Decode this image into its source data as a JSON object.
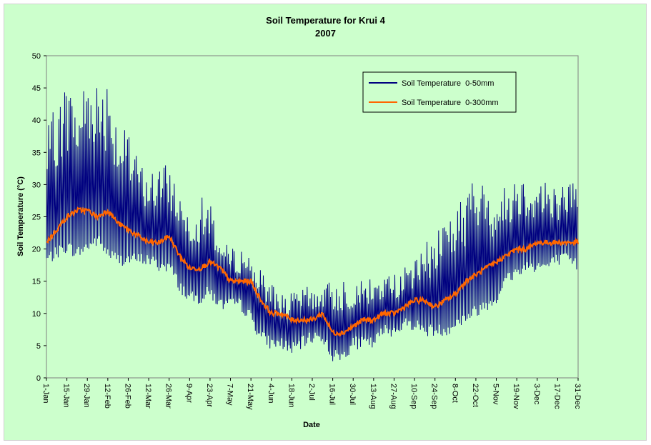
{
  "chart_data": {
    "type": "line",
    "title": "Soil Temperature for Krui 4",
    "subtitle": "2007",
    "xlabel": "Date",
    "ylabel": "Soil Temperature (°C)",
    "ylim": [
      0,
      50
    ],
    "yticks": [
      0,
      5,
      10,
      15,
      20,
      25,
      30,
      35,
      40,
      45,
      50
    ],
    "xlim_days": [
      1,
      365
    ],
    "xticks": [
      {
        "label": "1-Jan",
        "day": 1
      },
      {
        "label": "15-Jan",
        "day": 15
      },
      {
        "label": "29-Jan",
        "day": 29
      },
      {
        "label": "12-Feb",
        "day": 43
      },
      {
        "label": "26-Feb",
        "day": 57
      },
      {
        "label": "12-Mar",
        "day": 71
      },
      {
        "label": "26-Mar",
        "day": 85
      },
      {
        "label": "9-Apr",
        "day": 99
      },
      {
        "label": "23-Apr",
        "day": 113
      },
      {
        "label": "7-May",
        "day": 127
      },
      {
        "label": "21-May",
        "day": 141
      },
      {
        "label": "4-Jun",
        "day": 155
      },
      {
        "label": "18-Jun",
        "day": 169
      },
      {
        "label": "2-Jul",
        "day": 183
      },
      {
        "label": "16-Jul",
        "day": 197
      },
      {
        "label": "30-Jul",
        "day": 211
      },
      {
        "label": "13-Aug",
        "day": 225
      },
      {
        "label": "27-Aug",
        "day": 239
      },
      {
        "label": "10-Sep",
        "day": 253
      },
      {
        "label": "24-Sep",
        "day": 267
      },
      {
        "label": "8-Oct",
        "day": 281
      },
      {
        "label": "22-Oct",
        "day": 295
      },
      {
        "label": "5-Nov",
        "day": 309
      },
      {
        "label": "19-Nov",
        "day": 323
      },
      {
        "label": "3-Dec",
        "day": 337
      },
      {
        "label": "17-Dec",
        "day": 351
      },
      {
        "label": "31-Dec",
        "day": 365
      }
    ],
    "legend_position": "top-right inside plot",
    "grid": false,
    "series": [
      {
        "name": "Soil Temperature  0-50mm",
        "color": "#000080",
        "day": [
          1,
          8,
          15,
          22,
          29,
          36,
          43,
          50,
          57,
          64,
          71,
          78,
          85,
          92,
          99,
          106,
          113,
          120,
          127,
          134,
          141,
          148,
          155,
          162,
          169,
          176,
          183,
          190,
          197,
          204,
          211,
          218,
          225,
          232,
          239,
          246,
          253,
          260,
          267,
          274,
          281,
          288,
          295,
          302,
          309,
          316,
          323,
          330,
          337,
          344,
          351,
          358,
          365
        ],
        "daily_min": [
          18,
          19,
          20,
          19,
          20,
          21,
          19,
          18,
          18,
          18,
          18,
          17,
          17,
          14,
          12,
          12,
          13,
          11,
          11,
          11,
          9,
          6,
          5,
          5,
          4,
          5,
          6,
          6,
          3,
          3,
          5,
          5,
          5,
          7,
          7,
          8,
          8,
          7,
          7,
          7,
          8,
          9,
          10,
          11,
          12,
          15,
          16,
          17,
          17,
          17,
          18,
          18,
          17
        ],
        "daily_max": [
          36,
          40,
          43,
          40,
          45,
          43,
          44,
          37,
          35,
          32,
          30,
          31,
          31,
          27,
          25,
          26,
          26,
          20,
          19,
          19,
          18,
          15,
          14,
          12,
          12,
          13,
          13,
          13,
          14,
          14,
          14,
          14,
          14,
          15,
          15,
          16,
          17,
          19,
          21,
          24,
          24,
          27,
          29,
          27,
          27,
          28,
          30,
          29,
          29,
          29,
          28,
          29,
          30
        ]
      },
      {
        "name": "Soil Temperature  0-300mm",
        "color": "#ff6600",
        "day": [
          1,
          8,
          15,
          22,
          29,
          36,
          43,
          50,
          57,
          64,
          71,
          78,
          85,
          92,
          99,
          106,
          113,
          120,
          127,
          134,
          141,
          148,
          155,
          162,
          169,
          176,
          183,
          190,
          197,
          204,
          211,
          218,
          225,
          232,
          239,
          246,
          253,
          260,
          267,
          274,
          281,
          288,
          295,
          302,
          309,
          316,
          323,
          330,
          337,
          344,
          351,
          358,
          365
        ],
        "mean": [
          21,
          23,
          25,
          26,
          26,
          25,
          26,
          24,
          23,
          22,
          21,
          21,
          22,
          19,
          17,
          17,
          18,
          17,
          15,
          15,
          15,
          12,
          10,
          10,
          9,
          9,
          9,
          10,
          7,
          7,
          8,
          9,
          9,
          10,
          10,
          11,
          12,
          12,
          11,
          12,
          13,
          15,
          16,
          17,
          18,
          19,
          20,
          20,
          21,
          21,
          21,
          21,
          21
        ]
      }
    ]
  }
}
